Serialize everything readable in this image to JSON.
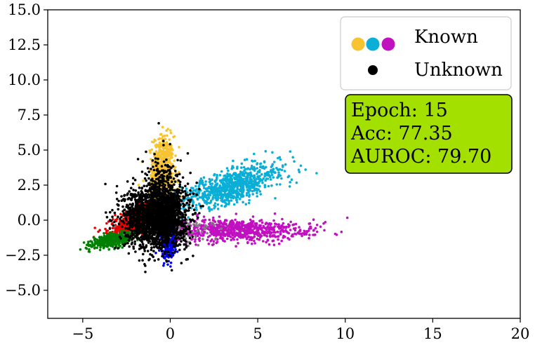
{
  "chart_data": {
    "type": "scatter",
    "title": "",
    "xlabel": "",
    "ylabel": "",
    "xlim": [
      -7,
      20
    ],
    "ylim": [
      -7,
      15
    ],
    "xticks": [
      -5,
      0,
      5,
      10,
      15,
      20
    ],
    "yticks": [
      -5.0,
      -2.5,
      0.0,
      2.5,
      5.0,
      7.5,
      10.0,
      12.5,
      15.0
    ],
    "x_tick_labels": [
      "−5",
      "0",
      "5",
      "10",
      "15",
      "20"
    ],
    "y_tick_labels": [
      "−5.0",
      "−2.5",
      "0.0",
      "2.5",
      "5.0",
      "7.5",
      "10.0",
      "12.5",
      "15.0"
    ],
    "grid": false,
    "legend_position": "upper-right",
    "legend": [
      {
        "label": "Known",
        "colors": [
          "#f7c331",
          "#0aaed6",
          "#c010c0"
        ]
      },
      {
        "label": "Unknown",
        "colors": [
          "#000000"
        ]
      }
    ],
    "annotation": {
      "lines": [
        "Epoch: 15",
        "Acc: 77.35",
        "AUROC: 79.70"
      ],
      "background": "#a3e000",
      "position": "right, below legend"
    },
    "series": [
      {
        "color": "#f7c331",
        "clusters": [
          {
            "cx": -0.4,
            "cy": 3.6,
            "sx": 0.3,
            "sy": 1.2,
            "n": 650
          },
          {
            "cx": -0.6,
            "cy": 1.6,
            "sx": 0.5,
            "sy": 0.8,
            "n": 150
          }
        ]
      },
      {
        "color": "#0aaed6",
        "clusters": [
          {
            "cx": 3.3,
            "cy": 2.3,
            "sx": 1.3,
            "sy": 0.7,
            "rho": 0.6,
            "n": 700
          },
          {
            "cx": 5.2,
            "cy": 3.4,
            "sx": 1.1,
            "sy": 0.6,
            "n": 120
          }
        ]
      },
      {
        "color": "#c010c0",
        "clusters": [
          {
            "cx": 3.6,
            "cy": -0.7,
            "sx": 1.8,
            "sy": 0.4,
            "n": 700
          },
          {
            "cx": 7.5,
            "cy": -0.8,
            "sx": 1.0,
            "sy": 0.3,
            "n": 40
          }
        ]
      },
      {
        "color": "#ee0000",
        "clusters": [
          {
            "cx": -1.9,
            "cy": 0.0,
            "sx": 0.8,
            "sy": 0.6,
            "rho": 0.7,
            "n": 700
          }
        ]
      },
      {
        "color": "#008000",
        "clusters": [
          {
            "cx": -3.3,
            "cy": -1.4,
            "sx": 0.55,
            "sy": 0.25,
            "rho": 0.6,
            "n": 500
          }
        ]
      },
      {
        "color": "#0000ee",
        "clusters": [
          {
            "cx": -0.1,
            "cy": -1.3,
            "sx": 0.2,
            "sy": 0.7,
            "n": 450
          }
        ]
      },
      {
        "color": "#7f7f7f",
        "clusters": [
          {
            "cx": 0.5,
            "cy": -0.6,
            "sx": 1.2,
            "sy": 0.6,
            "n": 80
          }
        ]
      },
      {
        "color": "#000000",
        "clusters": [
          {
            "cx": -0.8,
            "cy": 0.2,
            "sx": 0.9,
            "sy": 1.1,
            "n": 1900
          },
          {
            "cx": -0.4,
            "cy": 2.0,
            "sx": 0.6,
            "sy": 1.3,
            "n": 300
          }
        ]
      }
    ]
  }
}
